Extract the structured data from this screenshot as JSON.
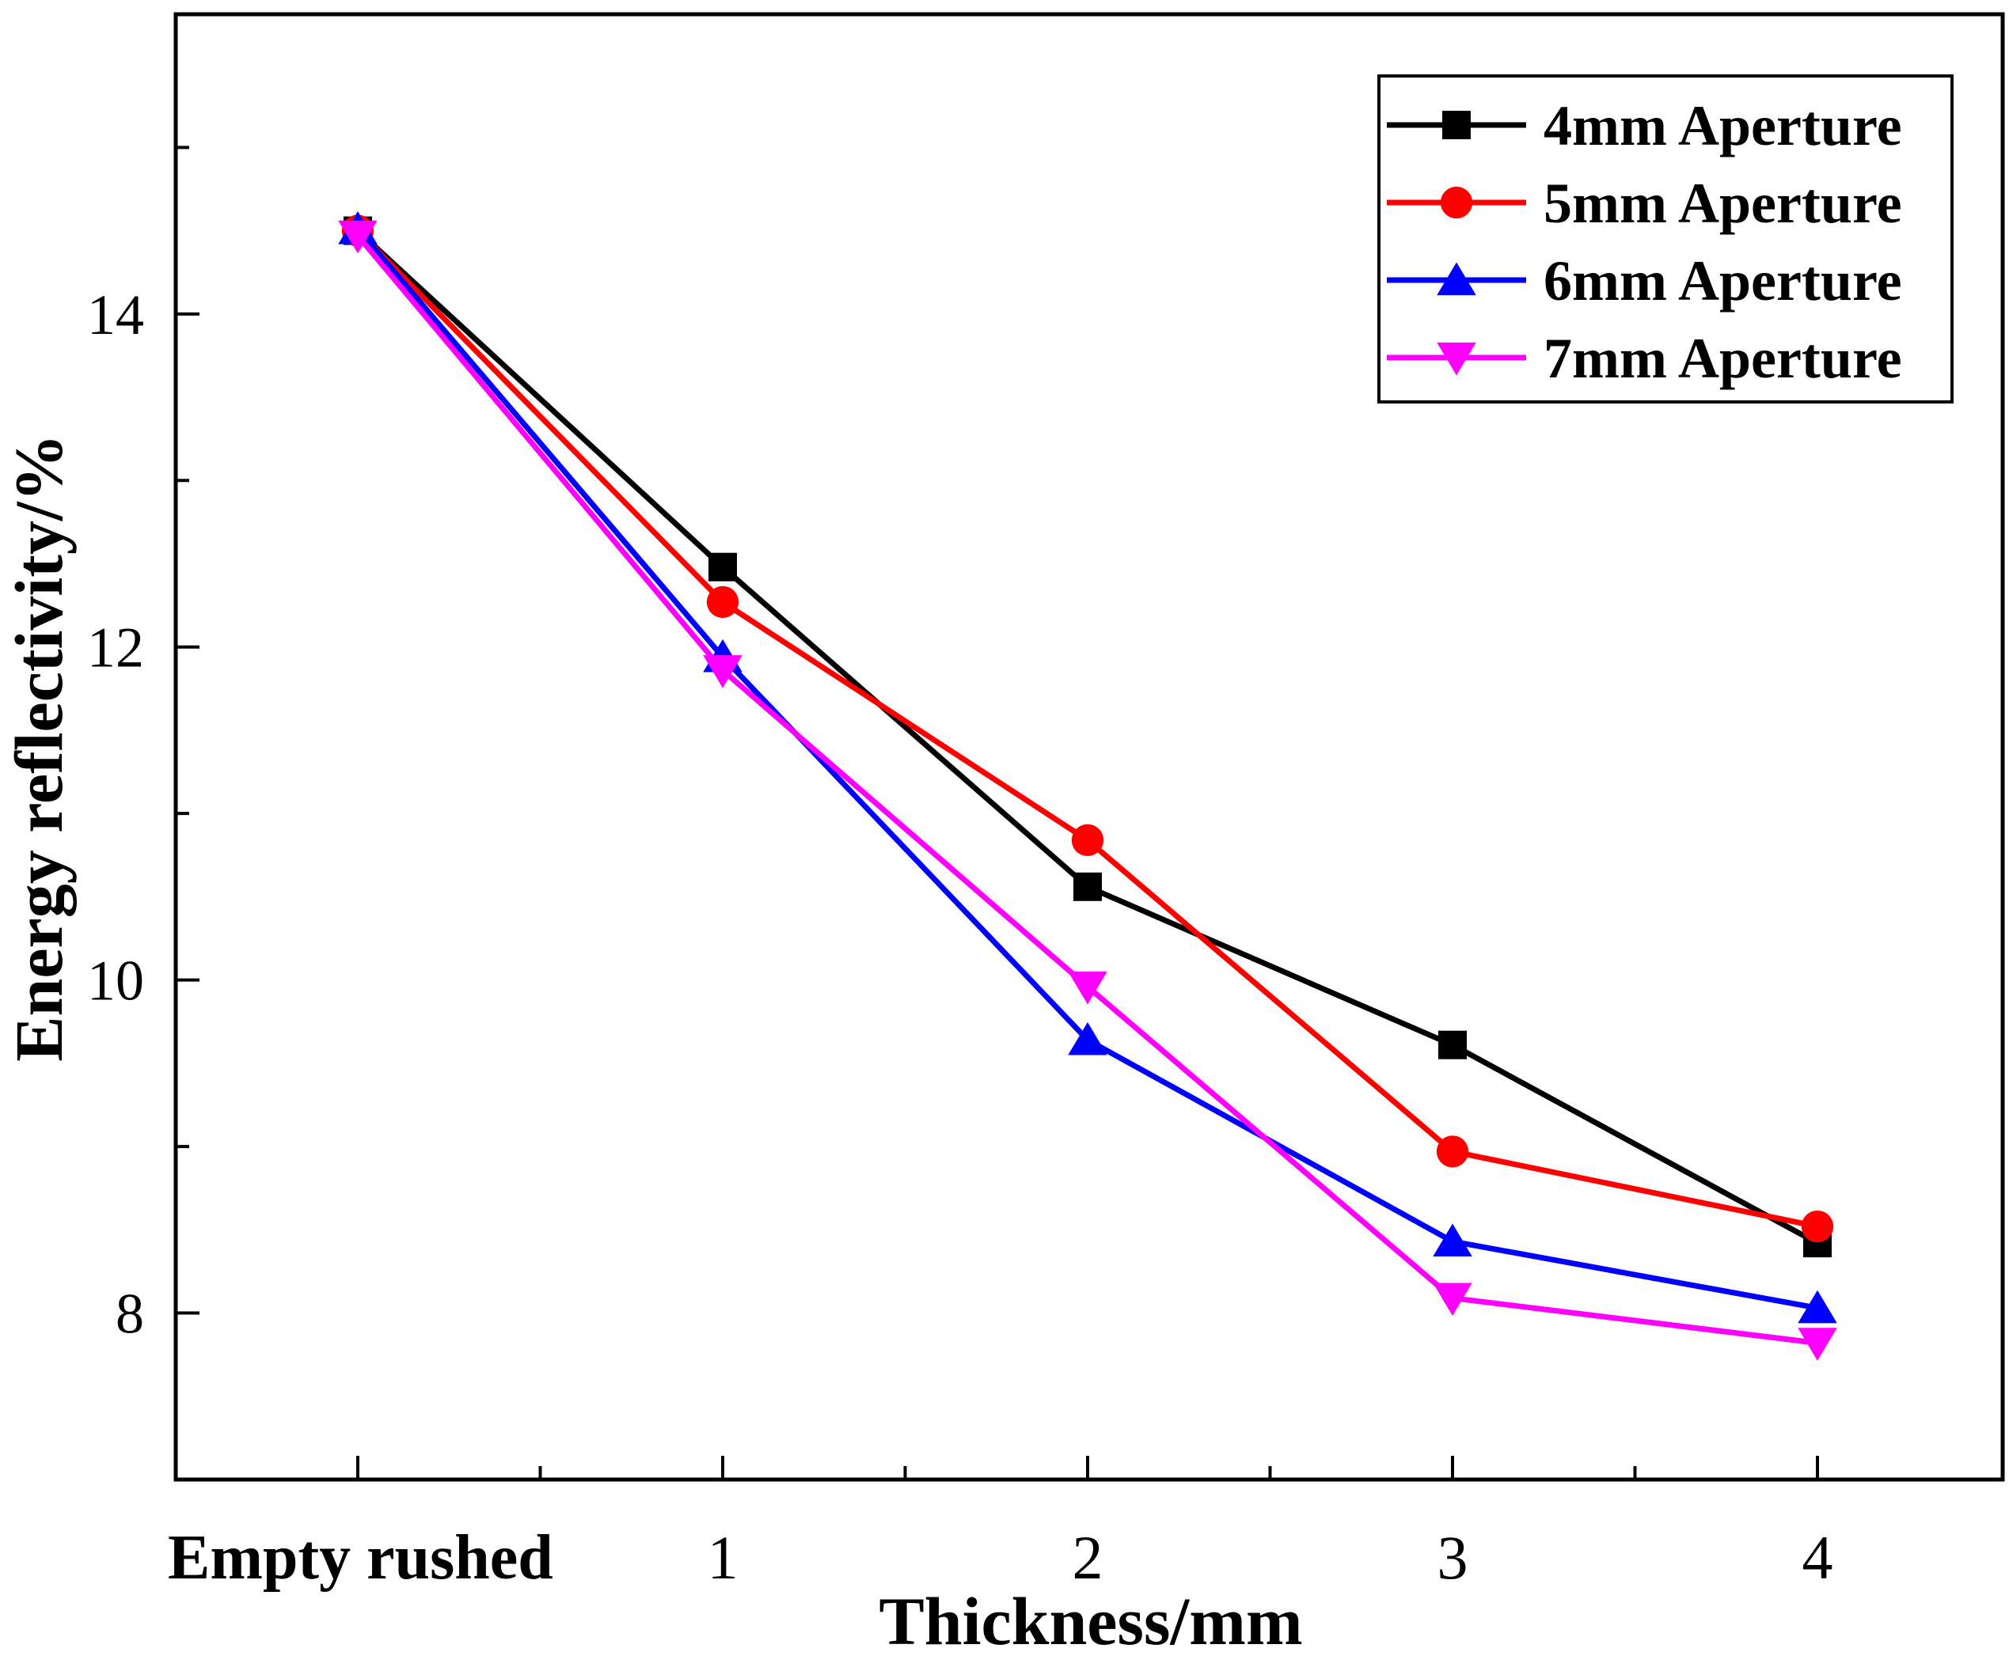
{
  "chart_data": {
    "type": "line",
    "title": "",
    "xlabel": "Thickness/mm",
    "ylabel": "Energy reflectivity/%",
    "categories": [
      "Empty rushed",
      "1",
      "2",
      "3",
      "4"
    ],
    "ylim": [
      7,
      15.8
    ],
    "yticks": [
      8,
      10,
      12,
      14
    ],
    "legend_position": "top-right",
    "series": [
      {
        "name": "4mm Aperture",
        "color": "#000000",
        "marker": "square",
        "values": [
          14.5,
          12.48,
          10.56,
          9.61,
          8.42
        ]
      },
      {
        "name": "5mm Aperture",
        "color": "#ff0000",
        "marker": "circle",
        "values": [
          14.5,
          12.27,
          10.84,
          8.97,
          8.52
        ]
      },
      {
        "name": "6mm Aperture",
        "color": "#0000ff",
        "marker": "triangle-up",
        "values": [
          14.51,
          11.94,
          9.64,
          8.43,
          8.03
        ]
      },
      {
        "name": "7mm Aperture",
        "color": "#ff00ff",
        "marker": "triangle-down",
        "values": [
          14.47,
          11.86,
          9.96,
          8.09,
          7.82
        ]
      }
    ]
  }
}
